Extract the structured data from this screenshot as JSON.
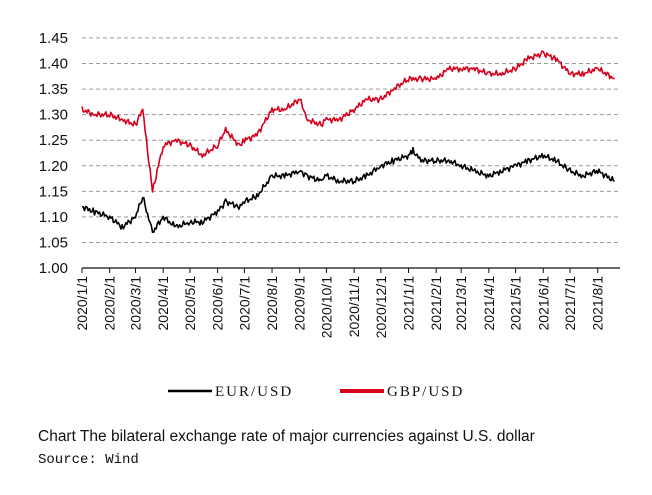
{
  "caption": "Chart  The bilateral exchange rate of major currencies against U.S. dollar",
  "source": "Source: Wind",
  "chart_data": {
    "type": "line",
    "title": "",
    "xlabel": "",
    "ylabel": "",
    "ylim": [
      1.0,
      1.45
    ],
    "yticks": [
      "1.00",
      "1.05",
      "1.10",
      "1.15",
      "1.20",
      "1.25",
      "1.30",
      "1.35",
      "1.40",
      "1.45"
    ],
    "xticks": [
      "2020/1/1",
      "2020/2/1",
      "2020/3/1",
      "2020/4/1",
      "2020/5/1",
      "2020/6/1",
      "2020/7/1",
      "2020/8/1",
      "2020/9/1",
      "2020/10/1",
      "2020/11/1",
      "2020/12/1",
      "2021/1/1",
      "2021/2/1",
      "2021/3/1",
      "2021/4/1",
      "2021/5/1",
      "2021/6/1",
      "2021/7/1",
      "2021/8/1"
    ],
    "grid": "horizontal dashed",
    "legend": "bottom",
    "x": [
      "2020-01-01",
      "2020-01-15",
      "2020-02-01",
      "2020-02-15",
      "2020-03-01",
      "2020-03-09",
      "2020-03-20",
      "2020-04-01",
      "2020-04-15",
      "2020-05-01",
      "2020-05-15",
      "2020-06-01",
      "2020-06-10",
      "2020-06-25",
      "2020-07-01",
      "2020-07-15",
      "2020-08-01",
      "2020-08-15",
      "2020-09-01",
      "2020-09-10",
      "2020-09-25",
      "2020-10-01",
      "2020-10-15",
      "2020-11-01",
      "2020-11-15",
      "2020-12-01",
      "2020-12-15",
      "2021-01-01",
      "2021-01-06",
      "2021-01-15",
      "2021-02-01",
      "2021-02-15",
      "2021-03-01",
      "2021-03-15",
      "2021-04-01",
      "2021-04-15",
      "2021-05-01",
      "2021-05-15",
      "2021-06-01",
      "2021-06-15",
      "2021-07-01",
      "2021-07-15",
      "2021-08-01",
      "2021-08-20"
    ],
    "series": [
      {
        "name": "EUR/USD",
        "color": "#000000",
        "values": [
          1.12,
          1.11,
          1.1,
          1.08,
          1.1,
          1.14,
          1.07,
          1.1,
          1.08,
          1.09,
          1.09,
          1.11,
          1.13,
          1.12,
          1.13,
          1.14,
          1.18,
          1.18,
          1.19,
          1.18,
          1.17,
          1.18,
          1.17,
          1.17,
          1.18,
          1.2,
          1.21,
          1.22,
          1.23,
          1.21,
          1.21,
          1.21,
          1.2,
          1.19,
          1.18,
          1.19,
          1.2,
          1.21,
          1.22,
          1.21,
          1.19,
          1.18,
          1.19,
          1.17
        ]
      },
      {
        "name": "GBP/USD",
        "color": "#d6001c",
        "values": [
          1.31,
          1.3,
          1.3,
          1.29,
          1.28,
          1.31,
          1.15,
          1.24,
          1.25,
          1.24,
          1.22,
          1.24,
          1.27,
          1.24,
          1.25,
          1.26,
          1.31,
          1.31,
          1.33,
          1.29,
          1.28,
          1.29,
          1.29,
          1.31,
          1.33,
          1.33,
          1.35,
          1.37,
          1.37,
          1.37,
          1.37,
          1.39,
          1.39,
          1.39,
          1.38,
          1.38,
          1.39,
          1.41,
          1.42,
          1.41,
          1.38,
          1.38,
          1.39,
          1.37
        ]
      }
    ]
  }
}
